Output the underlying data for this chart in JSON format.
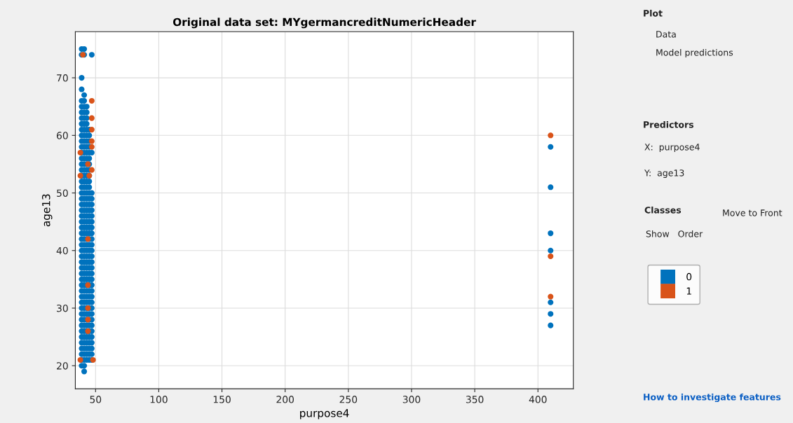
{
  "chart_data": [
    {
      "type": "scatter",
      "title": "Original data set: MYgermancreditNumericHeader",
      "xlabel": "purpose4",
      "ylabel": "age13",
      "xlim": [
        34,
        428
      ],
      "ylim": [
        16,
        78
      ],
      "xticks": [
        50,
        100,
        150,
        200,
        250,
        300,
        350,
        400
      ],
      "yticks": [
        20,
        30,
        40,
        50,
        60,
        70
      ],
      "grid": true,
      "marker": "circle",
      "legend": "right",
      "series": [
        {
          "name": "0",
          "color": "#0072bd",
          "x": [
            39,
            39,
            39,
            39,
            39,
            39,
            39,
            39,
            39,
            39,
            39,
            39,
            39,
            39,
            39,
            39,
            39,
            39,
            39,
            39,
            39,
            39,
            39,
            39,
            39,
            39,
            39,
            39,
            39,
            39,
            39,
            39,
            39,
            39,
            39,
            39,
            39,
            39,
            39,
            39,
            39,
            39,
            39,
            39,
            39,
            39,
            39,
            39,
            39,
            39,
            39,
            41,
            41,
            41,
            41,
            41,
            41,
            41,
            41,
            41,
            41,
            41,
            41,
            41,
            41,
            41,
            41,
            41,
            41,
            41,
            41,
            41,
            41,
            41,
            41,
            41,
            41,
            41,
            41,
            41,
            41,
            41,
            41,
            41,
            41,
            41,
            41,
            41,
            41,
            41,
            41,
            41,
            41,
            41,
            41,
            41,
            41,
            41,
            41,
            41,
            41,
            41,
            43,
            43,
            43,
            43,
            43,
            43,
            43,
            43,
            43,
            43,
            43,
            43,
            43,
            43,
            43,
            43,
            43,
            43,
            43,
            43,
            43,
            43,
            43,
            43,
            43,
            43,
            43,
            43,
            43,
            43,
            43,
            43,
            43,
            43,
            43,
            43,
            43,
            43,
            43,
            43,
            43,
            43,
            43,
            43,
            43,
            45,
            45,
            45,
            45,
            45,
            45,
            45,
            45,
            45,
            45,
            45,
            45,
            45,
            45,
            45,
            45,
            45,
            45,
            45,
            45,
            45,
            45,
            45,
            45,
            45,
            45,
            45,
            45,
            45,
            45,
            45,
            45,
            45,
            45,
            45,
            45,
            45,
            45,
            45,
            45,
            45,
            47,
            47,
            47,
            47,
            47,
            47,
            47,
            47,
            47,
            47,
            47,
            47,
            47,
            47,
            47,
            47,
            47,
            47,
            47,
            47,
            47,
            47,
            47,
            47,
            47,
            47,
            47,
            47,
            47,
            47,
            47,
            47,
            410,
            410,
            410,
            410,
            410,
            410,
            410
          ],
          "values": [
            20,
            21,
            22,
            23,
            24,
            25,
            26,
            27,
            28,
            29,
            30,
            31,
            32,
            33,
            34,
            35,
            36,
            37,
            38,
            39,
            40,
            41,
            42,
            43,
            44,
            45,
            46,
            47,
            48,
            49,
            50,
            51,
            52,
            53,
            54,
            55,
            56,
            57,
            58,
            59,
            60,
            61,
            62,
            63,
            64,
            65,
            66,
            68,
            70,
            74,
            75,
            19,
            20,
            21,
            22,
            23,
            24,
            25,
            26,
            27,
            28,
            29,
            30,
            31,
            32,
            33,
            34,
            35,
            36,
            37,
            38,
            39,
            40,
            41,
            42,
            43,
            44,
            45,
            46,
            47,
            48,
            49,
            50,
            51,
            52,
            53,
            54,
            55,
            56,
            57,
            58,
            59,
            60,
            61,
            62,
            63,
            64,
            65,
            66,
            67,
            74,
            75,
            21,
            22,
            23,
            24,
            25,
            26,
            27,
            28,
            29,
            30,
            31,
            32,
            33,
            34,
            35,
            36,
            37,
            38,
            39,
            40,
            41,
            42,
            43,
            44,
            45,
            46,
            47,
            48,
            49,
            50,
            51,
            52,
            53,
            54,
            55,
            56,
            57,
            58,
            59,
            60,
            61,
            62,
            63,
            64,
            65,
            21,
            22,
            23,
            24,
            25,
            26,
            27,
            28,
            29,
            30,
            31,
            32,
            33,
            34,
            35,
            36,
            37,
            38,
            39,
            40,
            41,
            42,
            43,
            44,
            45,
            46,
            47,
            48,
            49,
            50,
            51,
            52,
            53,
            54,
            55,
            56,
            57,
            58,
            59,
            60,
            61,
            21,
            22,
            23,
            24,
            25,
            26,
            27,
            28,
            29,
            30,
            31,
            32,
            33,
            34,
            35,
            36,
            37,
            38,
            39,
            40,
            41,
            42,
            43,
            44,
            45,
            46,
            47,
            48,
            49,
            50,
            57,
            74,
            58,
            51,
            43,
            40,
            31,
            29,
            27
          ]
        },
        {
          "name": "1",
          "color": "#d95319",
          "x": [
            47,
            47,
            47,
            47,
            47,
            38,
            44,
            47,
            38,
            45,
            40,
            44,
            44,
            44,
            44,
            44,
            38,
            48,
            410,
            410,
            410
          ],
          "values": [
            66,
            63,
            61,
            59,
            58,
            57,
            55,
            54,
            53,
            53,
            74,
            42,
            34,
            30,
            28,
            26,
            21,
            21,
            60,
            39,
            32
          ]
        }
      ]
    },
    {
      "type": "other",
      "annotations": [
        "Plot",
        "Data",
        "Model predictions",
        "Predictors",
        "X:  purpose4",
        "Y:  age13",
        "Classes",
        "Move to Front",
        "Show   Order",
        "How to investigate features"
      ]
    }
  ]
}
